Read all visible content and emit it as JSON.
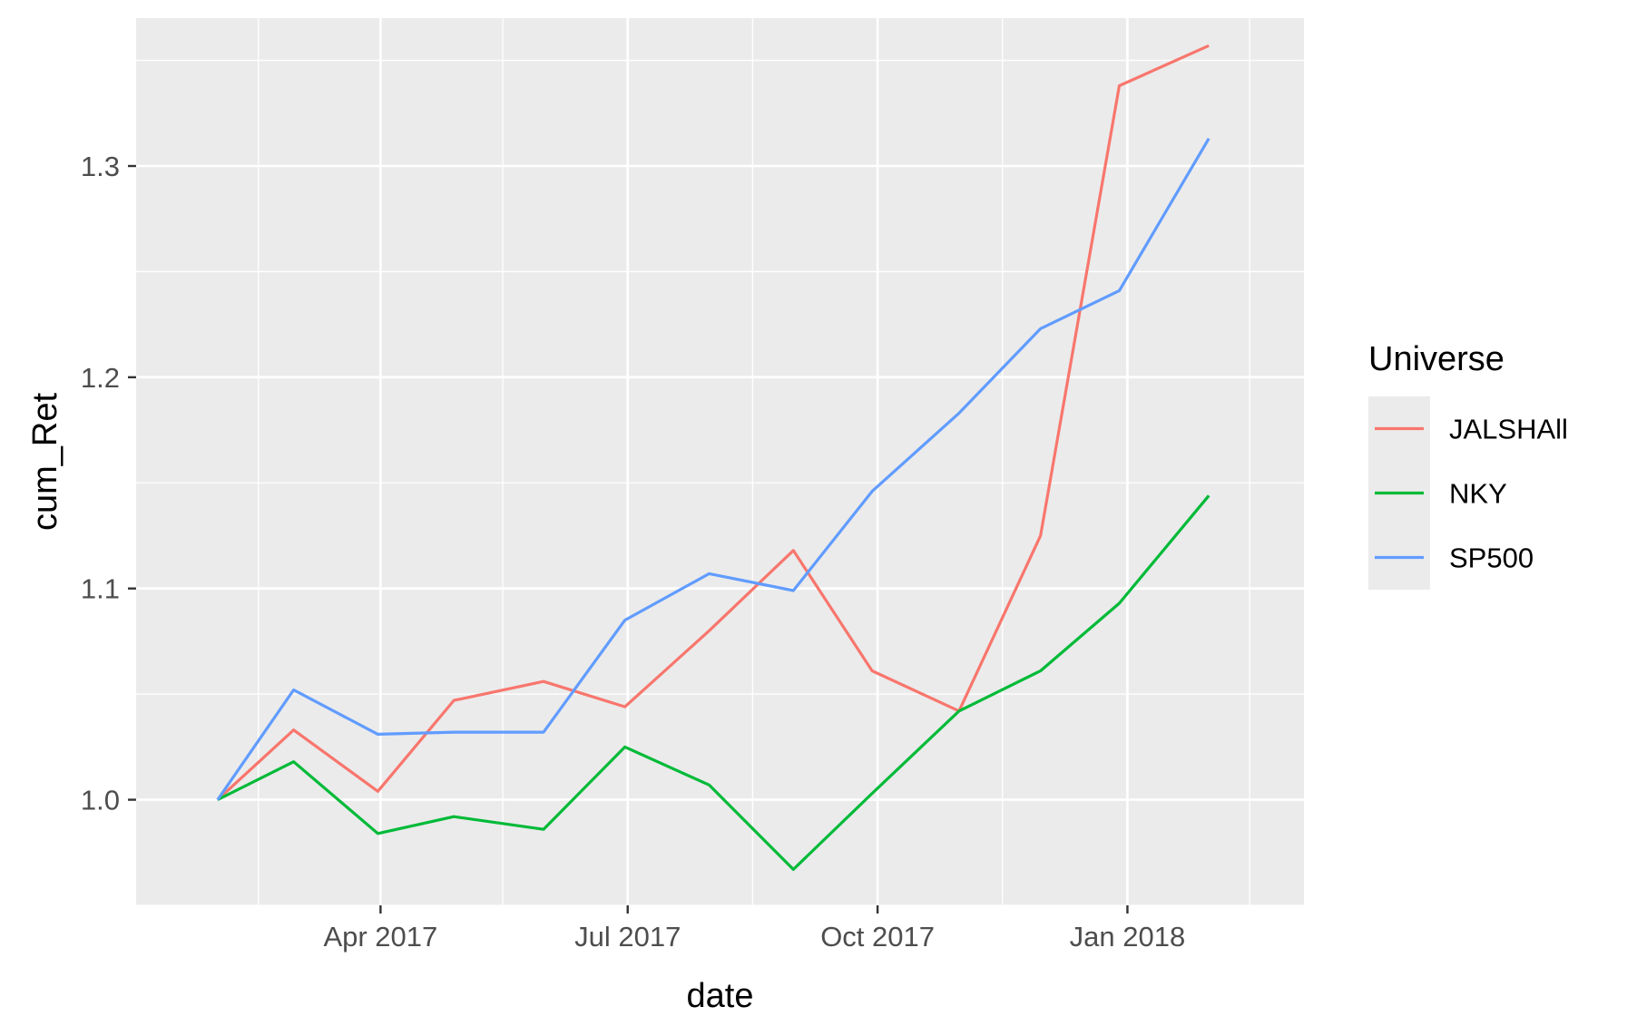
{
  "chart_data": {
    "type": "line",
    "xlabel": "date",
    "ylabel": "cum_Ret",
    "legend_title": "Universe",
    "legend_position": "right",
    "grid": true,
    "background": "#EBEBEB",
    "xlim": [
      "2017-01-01",
      "2018-03-07"
    ],
    "ylim": [
      0.95,
      1.37
    ],
    "x_ticks": [
      {
        "date": "2017-04-01",
        "label": "Apr 2017"
      },
      {
        "date": "2017-07-01",
        "label": "Jul 2017"
      },
      {
        "date": "2017-10-01",
        "label": "Oct 2017"
      },
      {
        "date": "2018-01-01",
        "label": "Jan 2018"
      }
    ],
    "x_minor_ticks": [
      "2017-02-15",
      "2017-05-16",
      "2017-08-16",
      "2017-11-16",
      "2018-02-15"
    ],
    "y_ticks": [
      {
        "value": 1.0,
        "label": "1.0"
      },
      {
        "value": 1.1,
        "label": "1.1"
      },
      {
        "value": 1.2,
        "label": "1.2"
      },
      {
        "value": 1.3,
        "label": "1.3"
      }
    ],
    "y_minor_ticks": [
      0.95,
      1.05,
      1.15,
      1.25,
      1.35
    ],
    "x": [
      "2017-01-31",
      "2017-02-28",
      "2017-03-31",
      "2017-04-28",
      "2017-05-31",
      "2017-06-30",
      "2017-07-31",
      "2017-08-31",
      "2017-09-29",
      "2017-10-31",
      "2017-11-30",
      "2017-12-29",
      "2018-01-31",
      "2018-02-28"
    ],
    "series": [
      {
        "name": "JALSHAll",
        "color": "#F8766D",
        "values": [
          1.0,
          1.033,
          1.004,
          1.047,
          1.056,
          1.044,
          1.08,
          1.118,
          1.061,
          1.042,
          1.125,
          1.338,
          1.357,
          null
        ]
      },
      {
        "name": "NKY",
        "color": "#00BA38",
        "values": [
          1.0,
          1.018,
          0.984,
          0.992,
          0.986,
          1.025,
          1.007,
          0.967,
          1.003,
          1.042,
          1.061,
          1.093,
          1.144,
          null
        ]
      },
      {
        "name": "SP500",
        "color": "#619CFF",
        "values": [
          1.0,
          1.052,
          1.031,
          1.032,
          1.032,
          1.085,
          1.107,
          1.099,
          1.146,
          1.183,
          1.223,
          1.241,
          1.313,
          null
        ]
      }
    ]
  }
}
